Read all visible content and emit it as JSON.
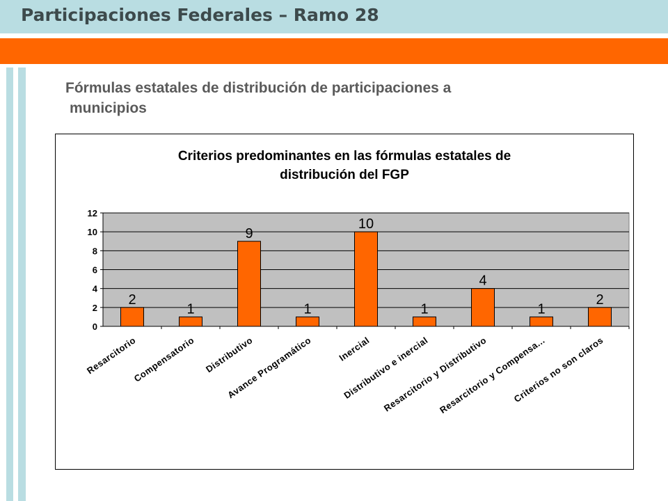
{
  "header": {
    "title": "Participaciones Federales – Ramo 28"
  },
  "section": {
    "subtitle_line1": "Fórmulas estatales de distribución de participaciones a",
    "subtitle_line2": "municipios"
  },
  "colors": {
    "accent_orange": "#ff6600",
    "header_blue": "#b9dde2",
    "plot_background": "#c0c0c0"
  },
  "chart_data": {
    "type": "bar",
    "title": "Criterios predominantes en las fórmulas estatales de distribución del FGP",
    "title_lines": [
      "Criterios predominantes en las fórmulas estatales de",
      "distribución del FGP"
    ],
    "xlabel": "",
    "ylabel": "",
    "categories": [
      "Resarcitorio",
      "Compensatorio",
      "Distributivo",
      "Avance Programático",
      "Inercial",
      "Distributivo e inercial",
      "Resarcitorio y Distributivo",
      "Resarcitorio y Compensa...",
      "Criterios no son claros"
    ],
    "values": [
      2,
      1,
      9,
      1,
      10,
      1,
      4,
      1,
      2
    ],
    "ylim": [
      0,
      12
    ],
    "yticks": [
      0,
      2,
      4,
      6,
      8,
      10,
      12
    ],
    "grid": true,
    "legend": "none",
    "bar_color": "#ff6600"
  }
}
